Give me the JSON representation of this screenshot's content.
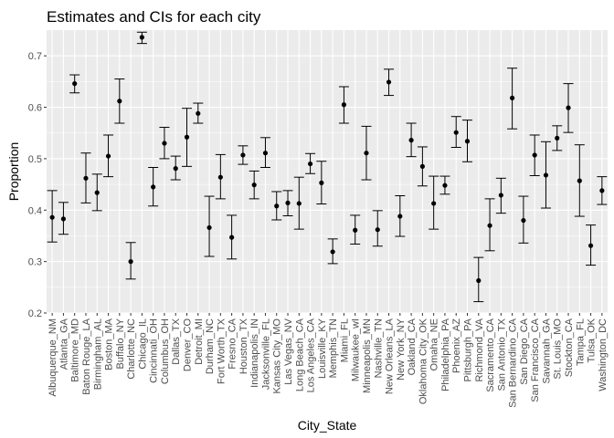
{
  "chart_data": {
    "type": "scatter",
    "subtype": "point-with-error-bars",
    "title": "Estimates and CIs for each city",
    "xlabel": "City_State",
    "ylabel": "Proportion",
    "ylim": [
      0.2,
      0.75
    ],
    "yticks": [
      0.2,
      0.3,
      0.4,
      0.5,
      0.6,
      0.7
    ],
    "grid": true,
    "background": "#ebebeb",
    "categories": [
      "Albuquerque_NM",
      "Atlanta_GA",
      "Baltimore_MD",
      "Baton Rouge_LA",
      "Birmingham_AL",
      "Boston_MA",
      "Buffalo_NY",
      "Charlotte_NC",
      "Chicago_IL",
      "Cincinnati_OH",
      "Columbus_OH",
      "Dallas_TX",
      "Denver_CO",
      "Detroit_MI",
      "Durham_NC",
      "Fort Worth_TX",
      "Fresno_CA",
      "Houston_TX",
      "Indianapolis_IN",
      "Jacksonville_FL",
      "Kansas City_MO",
      "Las Vegas_NV",
      "Long Beach_CA",
      "Los Angeles_CA",
      "Louisville_KY",
      "Memphis_TN",
      "Miami_FL",
      "Milwaukee_wI",
      "Minneapolis_MN",
      "Nashville_TN",
      "New Orleans_LA",
      "New York_NY",
      "Oakland_CA",
      "Oklahoma City_OK",
      "Omaha_NE",
      "Philadelphia_PA",
      "Phoenix_AZ",
      "Pittsburgh_PA",
      "Richmond_VA",
      "Sacramento_CA",
      "San Antonio_TX",
      "San Bernardino_CA",
      "San Diego_CA",
      "San Francisco_CA",
      "Savannah_GA",
      "St. Louis_MO",
      "Stockton_CA",
      "Tampa_FL",
      "Tulsa_OK",
      "Washington_DC"
    ],
    "estimate": [
      0.386,
      0.383,
      0.646,
      0.462,
      0.434,
      0.505,
      0.612,
      0.3,
      0.736,
      0.445,
      0.53,
      0.481,
      0.542,
      0.588,
      0.366,
      0.464,
      0.347,
      0.507,
      0.449,
      0.511,
      0.408,
      0.414,
      0.413,
      0.49,
      0.453,
      0.319,
      0.605,
      0.361,
      0.511,
      0.362,
      0.649,
      0.388,
      0.536,
      0.485,
      0.413,
      0.448,
      0.551,
      0.534,
      0.263,
      0.37,
      0.429,
      0.618,
      0.38,
      0.507,
      0.468,
      0.54,
      0.599,
      0.457,
      0.331,
      0.438
    ],
    "ci_low": [
      0.338,
      0.353,
      0.628,
      0.414,
      0.399,
      0.465,
      0.569,
      0.266,
      0.724,
      0.408,
      0.5,
      0.459,
      0.485,
      0.569,
      0.31,
      0.422,
      0.305,
      0.489,
      0.422,
      0.483,
      0.381,
      0.389,
      0.363,
      0.471,
      0.412,
      0.296,
      0.569,
      0.334,
      0.459,
      0.33,
      0.623,
      0.349,
      0.504,
      0.447,
      0.363,
      0.431,
      0.522,
      0.494,
      0.222,
      0.321,
      0.394,
      0.558,
      0.336,
      0.467,
      0.404,
      0.516,
      0.551,
      0.388,
      0.293,
      0.411
    ],
    "ci_high": [
      0.438,
      0.415,
      0.663,
      0.511,
      0.47,
      0.546,
      0.655,
      0.337,
      0.746,
      0.483,
      0.561,
      0.505,
      0.598,
      0.608,
      0.427,
      0.508,
      0.39,
      0.525,
      0.476,
      0.541,
      0.436,
      0.438,
      0.464,
      0.51,
      0.495,
      0.344,
      0.64,
      0.39,
      0.563,
      0.399,
      0.674,
      0.428,
      0.569,
      0.523,
      0.466,
      0.466,
      0.582,
      0.575,
      0.308,
      0.422,
      0.462,
      0.676,
      0.427,
      0.546,
      0.533,
      0.564,
      0.646,
      0.527,
      0.371,
      0.465
    ]
  }
}
